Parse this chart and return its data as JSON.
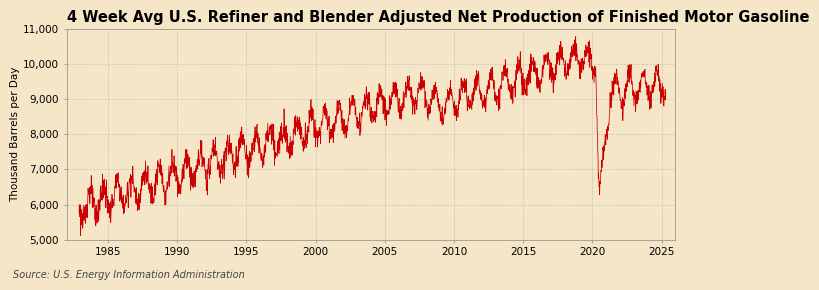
{
  "title": "4 Week Avg U.S. Refiner and Blender Adjusted Net Production of Finished Motor Gasoline",
  "ylabel": "Thousand Barrels per Day",
  "source": "Source: U.S. Energy Information Administration",
  "xlim": [
    1982.0,
    2026.0
  ],
  "ylim": [
    5000,
    11000
  ],
  "yticks": [
    5000,
    6000,
    7000,
    8000,
    9000,
    10000,
    11000
  ],
  "xticks": [
    1985,
    1990,
    1995,
    2000,
    2005,
    2010,
    2015,
    2020,
    2025
  ],
  "line_color": "#cc0000",
  "background_color": "#f5e6c8",
  "plot_bg_color": "#f5e6c8",
  "grid_color": "#bbbbbb",
  "title_fontsize": 10.5,
  "label_fontsize": 7.5,
  "tick_fontsize": 7.5,
  "source_fontsize": 7
}
